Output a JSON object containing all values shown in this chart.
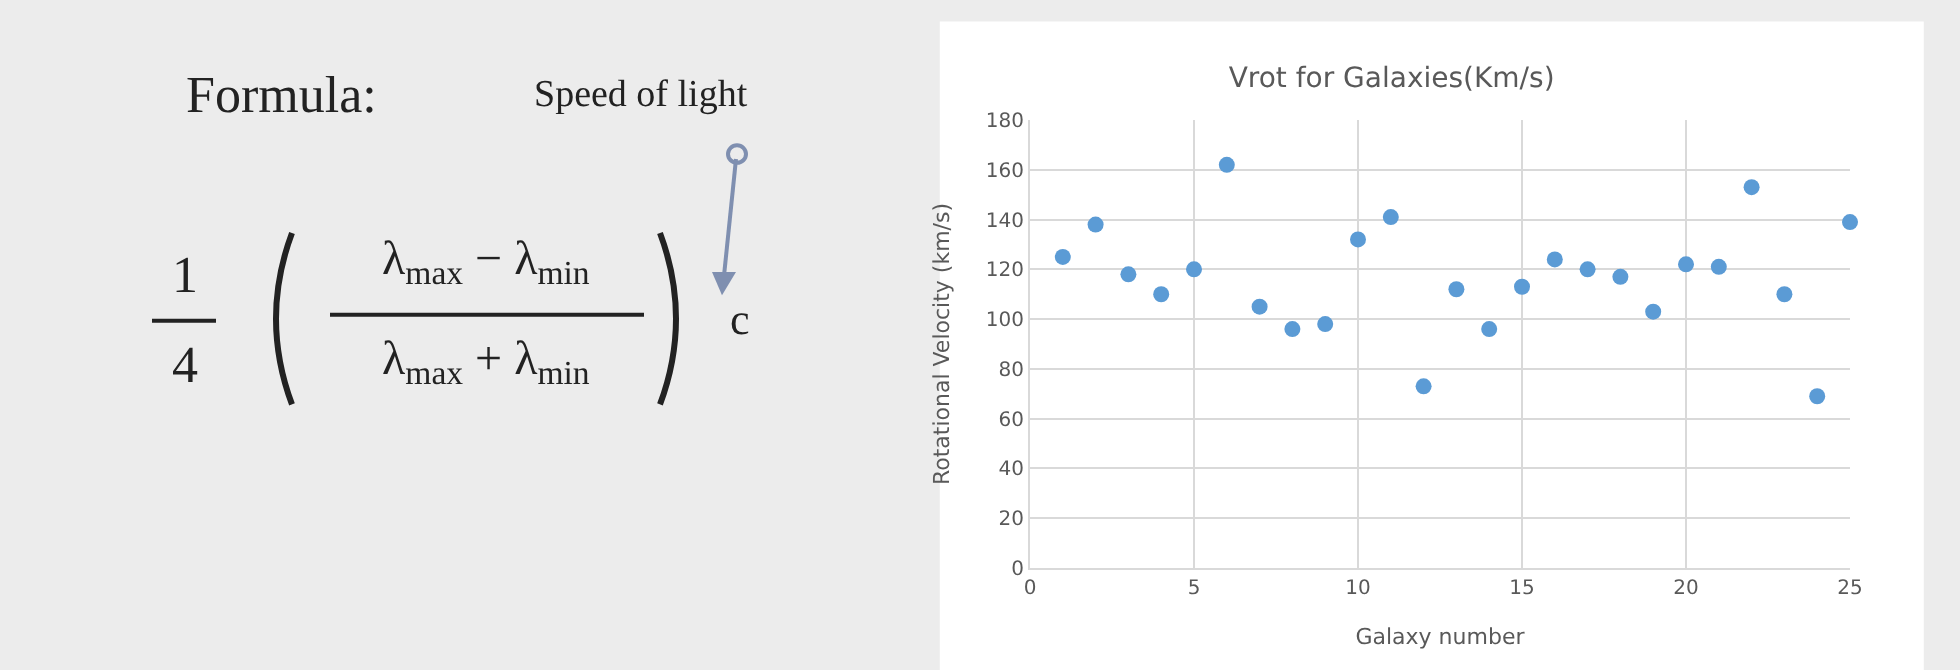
{
  "chart_data": {
    "type": "scatter",
    "title": "Vrot for Galaxies(Km/s)",
    "xlabel": "Galaxy number",
    "ylabel": "Rotational Velocity (km/s)",
    "x": [
      1,
      2,
      3,
      4,
      5,
      6,
      7,
      8,
      9,
      10,
      11,
      12,
      13,
      14,
      15,
      16,
      17,
      18,
      19,
      20,
      21,
      22,
      23,
      24,
      25
    ],
    "series": [
      {
        "color": "#5b9bd5",
        "values": [
          125,
          138,
          118,
          110,
          120,
          162,
          105,
          96,
          98,
          132,
          141,
          73,
          112,
          96,
          113,
          124,
          120,
          117,
          103,
          122,
          121,
          153,
          110,
          69,
          139
        ]
      }
    ],
    "xlim": [
      0,
      25
    ],
    "xticks": [
      0,
      5,
      10,
      15,
      20,
      25
    ],
    "ylim": [
      0,
      180
    ],
    "yticks": [
      0,
      20,
      40,
      60,
      80,
      100,
      120,
      140,
      160,
      180
    ],
    "grid": true,
    "marker": "circle",
    "legend": false,
    "annotations": [
      "Formula:",
      "Speed of light",
      "1",
      "4",
      "λ$_{max}$ − λ$_{min}$",
      "λ$_{max}$ + λ$_{min}$",
      "c"
    ]
  }
}
